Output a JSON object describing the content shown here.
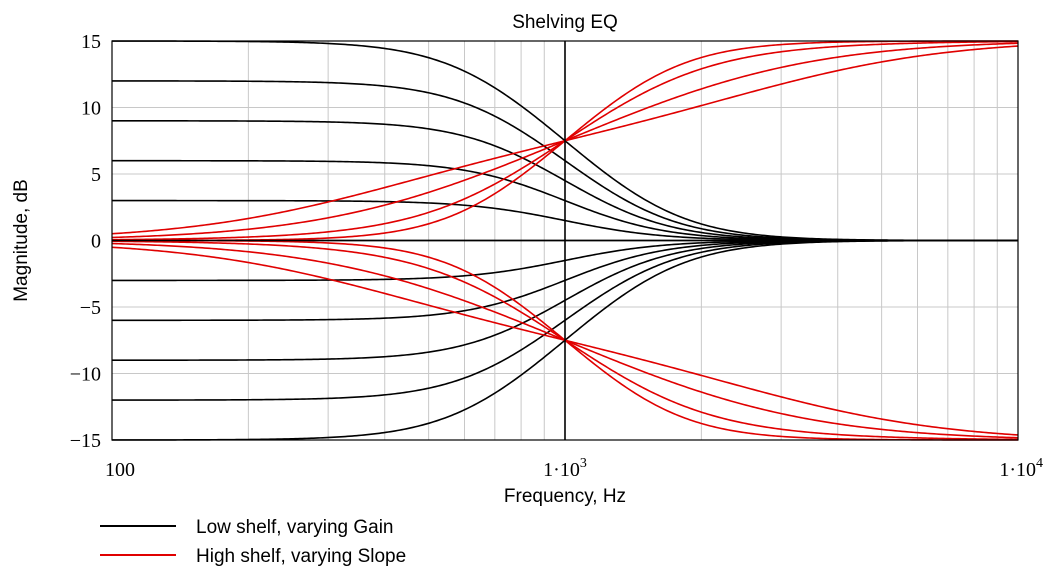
{
  "chart_data": {
    "type": "line",
    "title": "Shelving EQ",
    "xlabel": "Frequency, Hz",
    "ylabel": "Magnitude, dB",
    "x_scale": "log",
    "xlim": [
      100,
      10000
    ],
    "ylim": [
      -15,
      15
    ],
    "x_ticks": [
      {
        "value": 100,
        "label": "100"
      },
      {
        "value": 1000,
        "label": "1·10",
        "exp": "3"
      },
      {
        "value": 10000,
        "label": "1·10",
        "exp": "4"
      }
    ],
    "y_ticks": [
      {
        "value": 15,
        "label": "15"
      },
      {
        "value": 10,
        "label": "10"
      },
      {
        "value": 5,
        "label": "5"
      },
      {
        "value": 0,
        "label": "0"
      },
      {
        "value": -5,
        "label": "−5"
      },
      {
        "value": -10,
        "label": "−10"
      },
      {
        "value": -15,
        "label": "−15"
      }
    ],
    "grid": true,
    "legend_position": "bottom-left",
    "groups": [
      {
        "name": "Low shelf, varying Gain",
        "color": "#000000",
        "shelf": "low",
        "fc": 1000,
        "slope": 1,
        "gains": [
          15,
          12,
          9,
          6,
          3,
          0,
          -3,
          -6,
          -9,
          -12,
          -15
        ]
      },
      {
        "name": "High shelf, varying Slope",
        "color": "#e00000",
        "shelf": "high",
        "fc": 1000,
        "gains": [
          15,
          -15
        ],
        "slopes": [
          0.3,
          0.5,
          0.8,
          1.0
        ]
      }
    ]
  }
}
